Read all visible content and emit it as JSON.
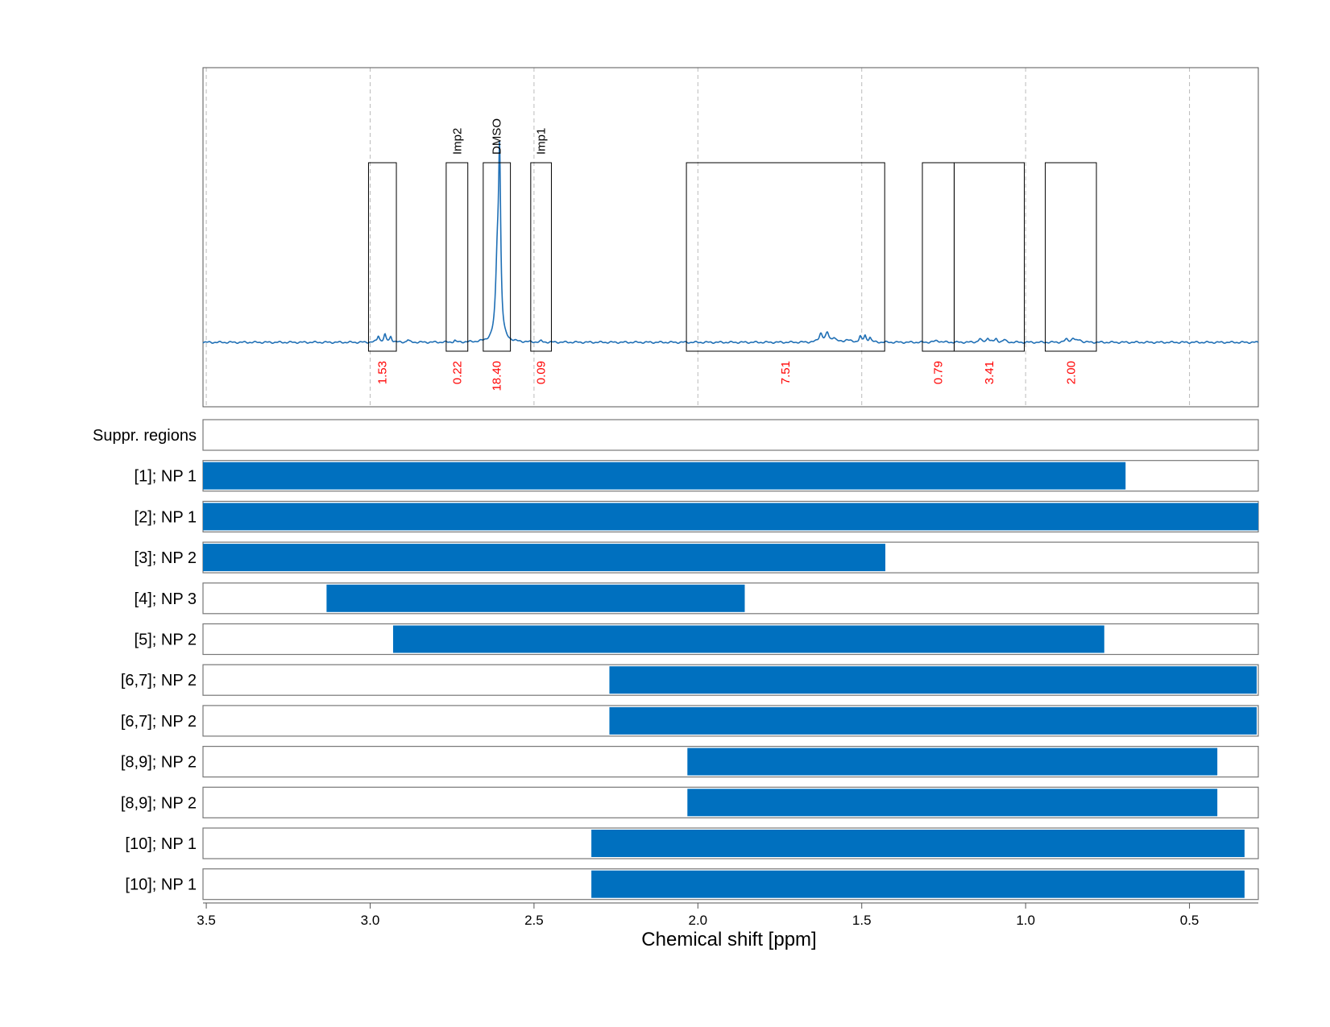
{
  "chart_data": {
    "type": "nmr_spectrum_with_ranges",
    "xlabel": "Chemical shift [ppm]",
    "x_axis": {
      "range": [
        3.51,
        0.29
      ],
      "reversed": true,
      "ticks": [
        3.5,
        3.0,
        2.5,
        2.0,
        1.5,
        1.0,
        0.5
      ],
      "tick_labels": [
        "3.5",
        "3.0",
        "2.5",
        "2.0",
        "1.5",
        "1.0",
        "0.5"
      ],
      "grid": true
    },
    "spectrum": {
      "series_color": "#1f6fb5",
      "baseline": 0.0,
      "y_range": [
        -0.16,
        0.52
      ],
      "peaks": [
        {
          "ppm": 2.975,
          "height": 0.016,
          "width": 0.004
        },
        {
          "ppm": 2.955,
          "height": 0.018,
          "width": 0.004
        },
        {
          "ppm": 2.937,
          "height": 0.014,
          "width": 0.004
        },
        {
          "ppm": 2.885,
          "height": 0.006,
          "width": 0.004
        },
        {
          "ppm": 2.742,
          "height": 0.004,
          "width": 0.003
        },
        {
          "ppm": 2.605,
          "height": 0.43,
          "width": 0.004
        },
        {
          "ppm": 2.612,
          "height": 0.18,
          "width": 0.006
        },
        {
          "ppm": 2.478,
          "height": 0.003,
          "width": 0.003
        },
        {
          "ppm": 1.625,
          "height": 0.022,
          "width": 0.006
        },
        {
          "ppm": 1.605,
          "height": 0.022,
          "width": 0.006
        },
        {
          "ppm": 1.585,
          "height": 0.011,
          "width": 0.006
        },
        {
          "ppm": 1.545,
          "height": 0.006,
          "width": 0.01
        },
        {
          "ppm": 1.505,
          "height": 0.014,
          "width": 0.004
        },
        {
          "ppm": 1.49,
          "height": 0.016,
          "width": 0.004
        },
        {
          "ppm": 1.475,
          "height": 0.012,
          "width": 0.004
        },
        {
          "ppm": 1.27,
          "height": 0.004,
          "width": 0.01
        },
        {
          "ppm": 1.14,
          "height": 0.008,
          "width": 0.005
        },
        {
          "ppm": 1.115,
          "height": 0.011,
          "width": 0.005
        },
        {
          "ppm": 1.09,
          "height": 0.008,
          "width": 0.005
        },
        {
          "ppm": 1.065,
          "height": 0.006,
          "width": 0.005
        },
        {
          "ppm": 0.875,
          "height": 0.007,
          "width": 0.006
        },
        {
          "ppm": 0.855,
          "height": 0.01,
          "width": 0.006
        },
        {
          "ppm": 0.835,
          "height": 0.006,
          "width": 0.006
        }
      ]
    },
    "integration_regions": [
      {
        "from": 3.005,
        "to": 2.92,
        "label": "",
        "integral": "1.53"
      },
      {
        "from": 2.768,
        "to": 2.702,
        "label": "Imp2",
        "integral": "0.22"
      },
      {
        "from": 2.655,
        "to": 2.572,
        "label": "DMSO",
        "integral": "18.40"
      },
      {
        "from": 2.51,
        "to": 2.447,
        "label": "Imp1",
        "integral": "0.09"
      },
      {
        "from": 2.035,
        "to": 1.43,
        "label": "",
        "integral": "7.51"
      },
      {
        "from": 1.315,
        "to": 1.218,
        "label": "",
        "integral": "0.79"
      },
      {
        "from": 1.218,
        "to": 1.004,
        "label": "",
        "integral": "3.41"
      },
      {
        "from": 0.94,
        "to": 0.784,
        "label": "",
        "integral": "2.00"
      }
    ],
    "range_tracks": [
      {
        "label": "Suppr. regions",
        "from": null,
        "to": null
      },
      {
        "label": "[1]; NP 1",
        "from": 3.51,
        "to": 0.695
      },
      {
        "label": "[2]; NP 1",
        "from": 3.51,
        "to": 0.29
      },
      {
        "label": "[3]; NP 2",
        "from": 3.51,
        "to": 1.428
      },
      {
        "label": "[4]; NP 3",
        "from": 3.133,
        "to": 1.857
      },
      {
        "label": "[5]; NP 2",
        "from": 2.93,
        "to": 0.76
      },
      {
        "label": "[6,7]; NP 2",
        "from": 2.27,
        "to": 0.295
      },
      {
        "label": "[6,7]; NP 2",
        "from": 2.27,
        "to": 0.295
      },
      {
        "label": "[8,9]; NP 2",
        "from": 2.032,
        "to": 0.415
      },
      {
        "label": "[8,9]; NP 2",
        "from": 2.032,
        "to": 0.415
      },
      {
        "label": "[10]; NP 1",
        "from": 2.325,
        "to": 0.332
      },
      {
        "label": "[10]; NP 1",
        "from": 2.325,
        "to": 0.332
      }
    ],
    "colors": {
      "bar": "#0070bf",
      "line": "#1f6fb5",
      "integral_text": "#ff0000",
      "grid": "#bbbbbb"
    }
  }
}
